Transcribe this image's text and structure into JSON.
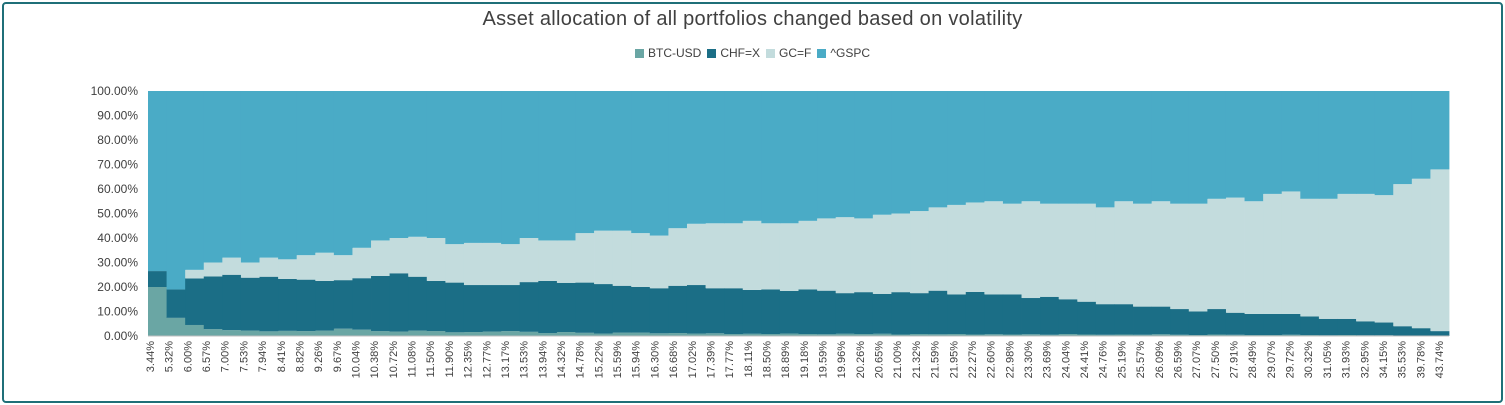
{
  "chart_data": {
    "type": "bar",
    "stacked": true,
    "title": "Asset allocation of all portfolios changed based on volatility",
    "xlabel": "",
    "ylabel": "",
    "ylim": [
      0,
      100
    ],
    "y_ticks": [
      "0.00%",
      "10.00%",
      "20.00%",
      "30.00%",
      "40.00%",
      "50.00%",
      "60.00%",
      "70.00%",
      "80.00%",
      "90.00%",
      "100.00%"
    ],
    "legend_position": "top",
    "grid": false,
    "x_tick_labels": [
      "3.44%",
      "5.32%",
      "6.00%",
      "6.57%",
      "7.00%",
      "7.53%",
      "7.94%",
      "8.41%",
      "8.82%",
      "9.26%",
      "9.67%",
      "10.04%",
      "10.38%",
      "10.72%",
      "11.08%",
      "11.50%",
      "11.90%",
      "12.35%",
      "12.77%",
      "13.17%",
      "13.53%",
      "13.94%",
      "14.32%",
      "14.78%",
      "15.22%",
      "15.59%",
      "15.94%",
      "16.30%",
      "16.68%",
      "17.02%",
      "17.39%",
      "17.77%",
      "18.11%",
      "18.50%",
      "18.89%",
      "19.18%",
      "19.59%",
      "19.96%",
      "20.26%",
      "20.65%",
      "21.00%",
      "21.32%",
      "21.59%",
      "21.95%",
      "22.27%",
      "22.60%",
      "22.98%",
      "23.30%",
      "23.69%",
      "24.04%",
      "24.41%",
      "24.76%",
      "25.19%",
      "25.57%",
      "26.09%",
      "26.59%",
      "27.07%",
      "27.50%",
      "27.91%",
      "28.49%",
      "29.07%",
      "29.72%",
      "30.32%",
      "31.05%",
      "31.93%",
      "32.95%",
      "34.15%",
      "35.53%",
      "39.78%",
      "43.74%"
    ],
    "series": [
      {
        "name": "BTC-USD",
        "color": "#6aa6a4",
        "values": [
          20.0,
          7.4,
          4.5,
          2.8,
          2.4,
          2.2,
          1.9,
          2.1,
          2.0,
          2.2,
          3.0,
          2.6,
          2.0,
          1.8,
          2.2,
          2.0,
          1.5,
          1.6,
          1.8,
          2.0,
          1.7,
          1.2,
          1.6,
          1.3,
          1.0,
          1.4,
          1.4,
          1.1,
          1.2,
          1.0,
          1.1,
          0.8,
          0.9,
          0.8,
          1.0,
          0.8,
          0.7,
          0.9,
          0.8,
          0.9,
          0.6,
          0.8,
          0.7,
          0.8,
          0.6,
          0.7,
          0.6,
          0.7,
          0.5,
          0.8,
          0.6,
          0.5,
          0.6,
          0.5,
          0.7,
          0.5,
          0.4,
          0.6,
          0.5,
          0.4,
          0.4,
          0.5,
          0.4,
          0.3,
          0.4,
          0.3,
          0.3,
          0.2,
          0.2,
          0.1
        ]
      },
      {
        "name": "CHF=X",
        "color": "#1b6e86",
        "values": [
          6.5,
          11.6,
          19.0,
          21.5,
          22.6,
          21.6,
          22.3,
          21.2,
          21.0,
          20.3,
          19.8,
          21.0,
          22.5,
          23.8,
          22.0,
          20.5,
          20.3,
          19.2,
          19.0,
          18.8,
          20.3,
          21.3,
          20.1,
          20.5,
          20.2,
          19.1,
          18.6,
          18.4,
          19.3,
          19.8,
          18.4,
          18.7,
          17.9,
          18.2,
          17.4,
          18.2,
          17.8,
          16.6,
          17.1,
          16.3,
          17.3,
          16.7,
          17.8,
          16.2,
          17.4,
          16.3,
          16.4,
          14.8,
          15.5,
          14.2,
          13.4,
          12.5,
          12.4,
          11.5,
          11.3,
          10.5,
          9.6,
          10.4,
          9.0,
          8.6,
          8.6,
          8.5,
          7.6,
          6.7,
          6.6,
          5.7,
          5.2,
          3.8,
          3.0,
          1.9
        ]
      },
      {
        "name": "GC=F",
        "color": "#c3dcdd",
        "values": [
          0.0,
          0.0,
          3.5,
          5.7,
          7.0,
          6.2,
          7.8,
          8.0,
          10.0,
          11.5,
          10.2,
          12.4,
          14.5,
          14.4,
          16.3,
          17.5,
          15.7,
          17.2,
          17.2,
          16.7,
          18.0,
          16.5,
          17.3,
          20.2,
          21.8,
          22.5,
          22.0,
          21.5,
          23.5,
          25.0,
          26.5,
          26.5,
          28.2,
          27.0,
          27.6,
          28.0,
          29.5,
          31.0,
          30.1,
          32.3,
          32.1,
          33.5,
          34.0,
          36.5,
          36.5,
          38.0,
          37.0,
          39.5,
          38.0,
          39.0,
          40.0,
          39.5,
          42.0,
          42.0,
          43.0,
          43.0,
          44.0,
          45.0,
          47.0,
          46.0,
          49.0,
          50.0,
          48.0,
          49.0,
          51.0,
          52.0,
          52.0,
          58.0,
          61.0,
          66.0
        ]
      },
      {
        "name": "^GSPC",
        "color": "#4aabc6",
        "values": [
          73.5,
          81.0,
          73.0,
          70.0,
          68.0,
          70.0,
          68.0,
          68.7,
          67.0,
          66.0,
          67.0,
          64.0,
          61.0,
          60.0,
          59.5,
          60.0,
          62.5,
          62.0,
          62.0,
          62.5,
          60.0,
          61.0,
          61.0,
          58.0,
          57.0,
          57.0,
          58.0,
          59.0,
          56.0,
          54.2,
          54.0,
          54.0,
          53.0,
          54.0,
          54.0,
          53.0,
          52.0,
          51.5,
          52.0,
          50.5,
          50.0,
          49.0,
          47.5,
          46.5,
          45.5,
          45.0,
          46.0,
          45.0,
          46.0,
          46.0,
          46.0,
          47.5,
          45.0,
          46.0,
          45.0,
          46.0,
          46.0,
          44.0,
          43.5,
          45.0,
          42.0,
          41.0,
          44.0,
          44.0,
          42.0,
          42.0,
          42.5,
          38.0,
          35.8,
          32.0
        ]
      }
    ]
  }
}
